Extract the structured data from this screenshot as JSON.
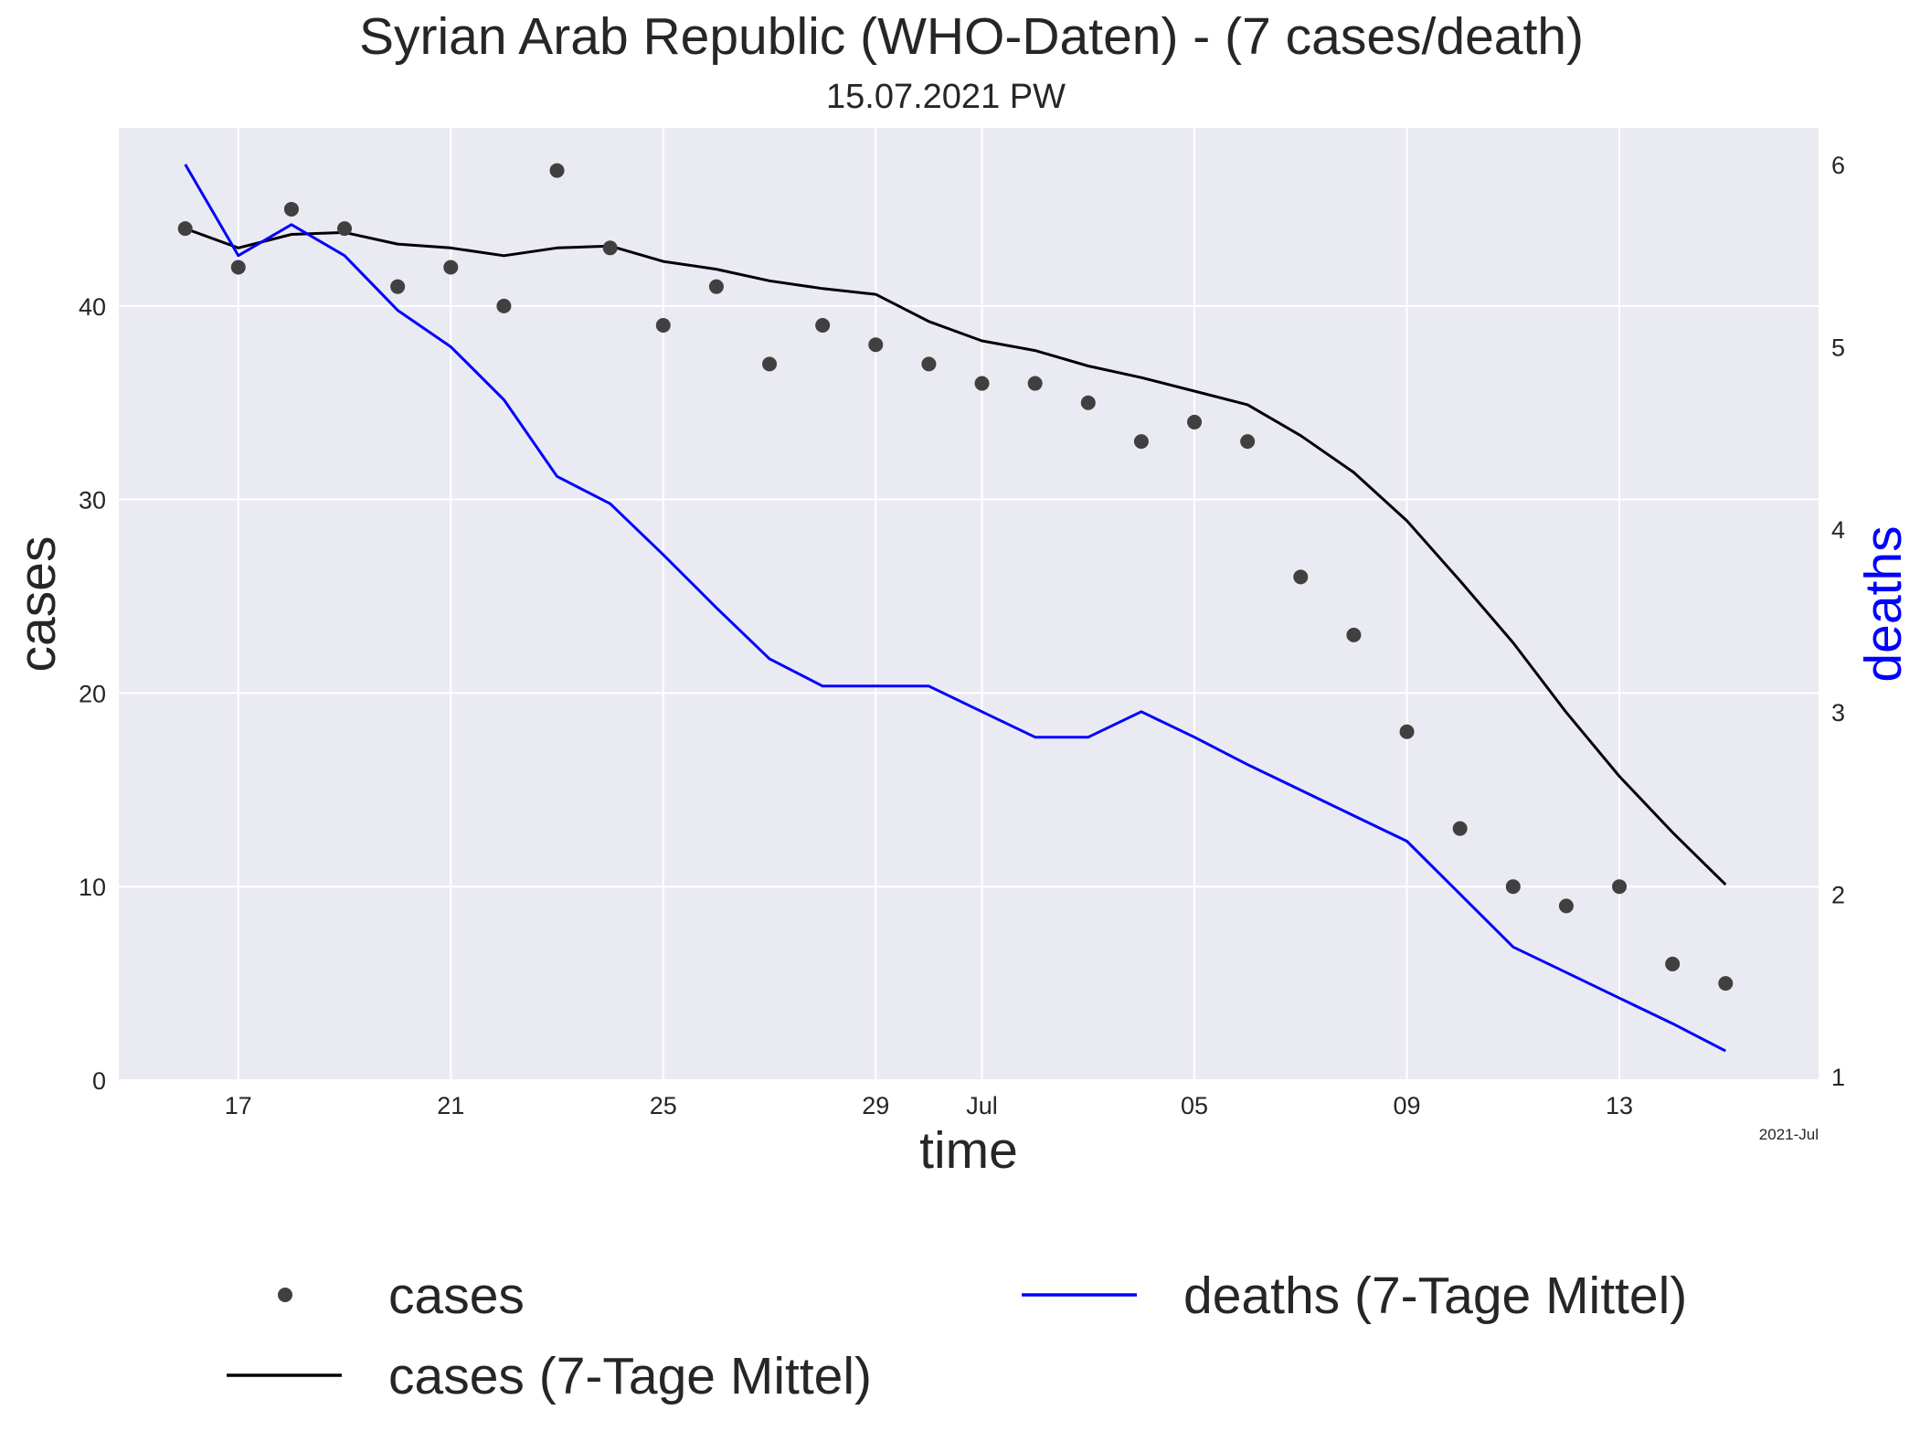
{
  "chart_data": {
    "type": "line",
    "title": "Syrian Arab Republic (WHO-Daten) - (7 cases/death)",
    "subtitle": "15.07.2021 PW",
    "xlabel": "time",
    "ylabel": "cases",
    "ylabel_right": "deaths",
    "x_offset_label": "2021-Jul",
    "grid": true,
    "legend_placement": "below",
    "x": [
      "2021-06-16",
      "2021-06-17",
      "2021-06-18",
      "2021-06-19",
      "2021-06-20",
      "2021-06-21",
      "2021-06-22",
      "2021-06-23",
      "2021-06-24",
      "2021-06-25",
      "2021-06-26",
      "2021-06-27",
      "2021-06-28",
      "2021-06-29",
      "2021-06-30",
      "2021-07-01",
      "2021-07-02",
      "2021-07-03",
      "2021-07-04",
      "2021-07-05",
      "2021-07-06",
      "2021-07-07",
      "2021-07-08",
      "2021-07-09",
      "2021-07-10",
      "2021-07-11",
      "2021-07-12",
      "2021-07-13",
      "2021-07-14",
      "2021-07-15"
    ],
    "x_ticks": [
      "2021-06-17",
      "2021-06-21",
      "2021-06-25",
      "2021-06-29",
      "2021-07-01",
      "2021-07-05",
      "2021-07-09",
      "2021-07-13"
    ],
    "x_tick_labels": [
      "17",
      "21",
      "25",
      "29",
      "Jul",
      "05",
      "09",
      "13"
    ],
    "y_left": {
      "lim": [
        0,
        49.2
      ],
      "ticks": [
        0,
        10,
        20,
        30,
        40
      ]
    },
    "y_right": {
      "lim": [
        0.98,
        6.2
      ],
      "ticks": [
        1,
        2,
        3,
        4,
        5,
        6
      ]
    },
    "series": [
      {
        "name": "cases",
        "type": "scatter",
        "axis": "left",
        "color": "#404040",
        "values": [
          44,
          42,
          45,
          44,
          41,
          42,
          40,
          47,
          43,
          39,
          41,
          37,
          39,
          38,
          37,
          36,
          36,
          35,
          33,
          34,
          33,
          26,
          23,
          18,
          13,
          10,
          9,
          10,
          6,
          5
        ]
      },
      {
        "name": "cases (7-Tage Mittel)",
        "type": "line",
        "axis": "left",
        "color": "#000000",
        "values": [
          44.0,
          43.0,
          43.7,
          43.8,
          43.2,
          43.0,
          42.6,
          43.0,
          43.1,
          42.3,
          41.9,
          41.3,
          40.9,
          40.6,
          39.2,
          38.2,
          37.7,
          36.9,
          36.3,
          35.6,
          34.9,
          33.3,
          31.4,
          28.9,
          25.8,
          22.6,
          19.0,
          15.7,
          12.8,
          10.1
        ]
      },
      {
        "name": "deaths (7-Tage Mittel)",
        "type": "line",
        "axis": "right",
        "color": "#0000ff",
        "values": [
          6.0,
          5.5,
          5.67,
          5.5,
          5.2,
          5.0,
          4.71,
          4.29,
          4.14,
          3.86,
          3.57,
          3.29,
          3.14,
          3.14,
          3.14,
          3.0,
          2.86,
          2.86,
          3.0,
          2.86,
          2.71,
          2.57,
          2.43,
          2.29,
          2.0,
          1.71,
          1.57,
          1.43,
          1.29,
          1.14
        ]
      }
    ],
    "legend": {
      "cases": "cases",
      "cases_avg": "cases (7-Tage Mittel)",
      "deaths_avg": "deaths (7-Tage Mittel)"
    },
    "colors": {
      "plot_background": "#eaeaf2",
      "grid": "#ffffff",
      "cases": "#404040",
      "cases_avg": "#000000",
      "deaths_avg": "#0000ff",
      "deaths_label": "#0000ff"
    }
  }
}
